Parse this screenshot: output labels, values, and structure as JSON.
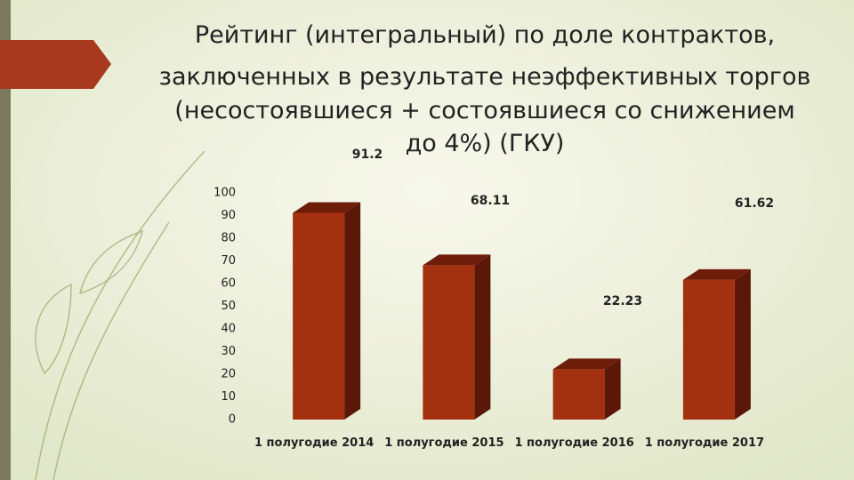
{
  "chart_data": {
    "type": "bar3d",
    "title": [
      "Рейтинг (интегральный) по доле контрактов,",
      "заключенных в результате неэффективных торгов",
      "(несостоявшиеся + состоявшиеся со снижением",
      "до 4%) (ГКУ)"
    ],
    "categories": [
      "1 полугодие 2014",
      "1 полугодие 2015",
      "1 полугодие 2016",
      "1 полугодие 2017"
    ],
    "values": [
      91.2,
      68.11,
      22.23,
      61.62
    ],
    "color": "#a3300f",
    "ylim": [
      0,
      100
    ],
    "yticks": [
      0,
      10,
      20,
      30,
      40,
      50,
      60,
      70,
      80,
      90,
      100
    ],
    "grid": false
  }
}
